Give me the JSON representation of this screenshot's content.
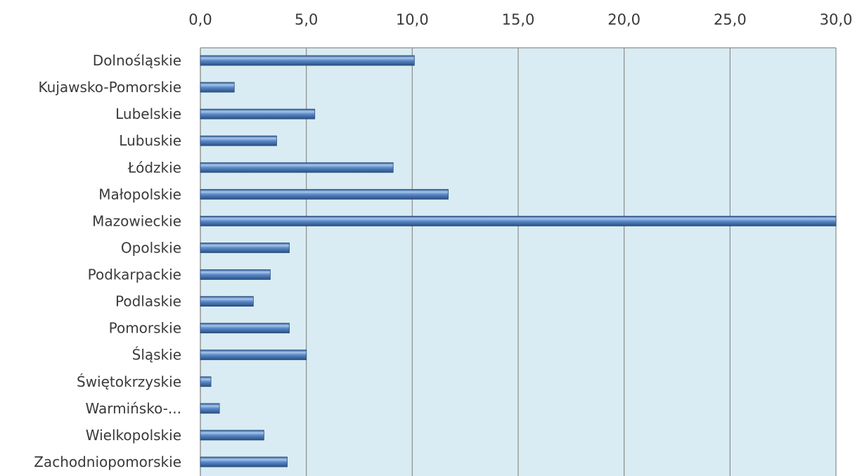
{
  "chart_data": {
    "type": "bar",
    "orientation": "horizontal",
    "title": "",
    "xlabel": "",
    "ylabel": "",
    "categories": [
      "Dolnośląskie",
      "Kujawsko-Pomorskie",
      "Lubelskie",
      "Lubuskie",
      "Łódzkie",
      "Małopolskie",
      "Mazowieckie",
      "Opolskie",
      "Podkarpackie",
      "Podlaskie",
      "Pomorskie",
      "Śląskie",
      "Świętokrzyskie",
      "Warmińsko-...",
      "Wielkopolskie",
      "Zachodniopomorskie"
    ],
    "values": [
      10.1,
      1.6,
      5.4,
      3.6,
      9.1,
      11.7,
      30.0,
      4.2,
      3.3,
      2.5,
      4.2,
      5.0,
      0.5,
      0.9,
      3.0,
      4.1
    ],
    "xlim": [
      0,
      30
    ],
    "xticks": [
      0,
      5,
      10,
      15,
      20,
      25,
      30
    ],
    "xtick_labels": [
      "0,0",
      "5,0",
      "10,0",
      "15,0",
      "20,0",
      "25,0",
      "30,0"
    ],
    "x_axis_position": "top",
    "grid": true,
    "legend": "none",
    "colors": {
      "plot_background": "#d9ecf3",
      "bar": "#4f81bd",
      "bar_highlight": "#a9c6ea",
      "bar_shadow": "#2a4f80",
      "grid": "#8c8c8c",
      "text": "#3a3a3a"
    }
  }
}
